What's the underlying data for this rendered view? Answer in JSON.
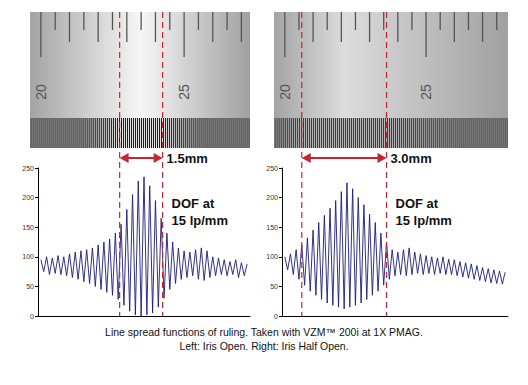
{
  "chart_data": [
    {
      "type": "line",
      "color": "#1c1c78",
      "grid": false,
      "tick_labels": "y",
      "xlim": [
        19.9,
        27.3
      ],
      "ylim": [
        0,
        250
      ],
      "yticks": [
        0,
        50,
        100,
        150,
        200,
        250
      ],
      "x": [
        20,
        20.1,
        20.2,
        20.3,
        20.4,
        20.5,
        20.6,
        20.7,
        20.8,
        20.9,
        21,
        21.1,
        21.2,
        21.3,
        21.4,
        21.5,
        21.6,
        21.7,
        21.8,
        21.9,
        22,
        22.1,
        22.2,
        22.3,
        22.4,
        22.5,
        22.6,
        22.7,
        22.8,
        22.9,
        23,
        23.1,
        23.2,
        23.3,
        23.4,
        23.5,
        23.6,
        23.7,
        23.8,
        23.9,
        24,
        24.1,
        24.2,
        24.3,
        24.4,
        24.5,
        24.6,
        24.7,
        24.8,
        24.9,
        25,
        25.1,
        25.2,
        25.3,
        25.4,
        25.5,
        25.6,
        25.7,
        25.8,
        25.9,
        26,
        26.1,
        26.2,
        26.3,
        26.4,
        26.5,
        26.6,
        26.7,
        26.8,
        26.9,
        27,
        27.1,
        27.2
      ],
      "values": [
        95,
        75,
        100,
        70,
        98,
        72,
        102,
        70,
        100,
        68,
        105,
        65,
        108,
        62,
        110,
        58,
        112,
        55,
        115,
        50,
        120,
        45,
        125,
        40,
        130,
        35,
        140,
        28,
        155,
        18,
        180,
        8,
        205,
        2,
        228,
        0,
        235,
        2,
        220,
        5,
        195,
        15,
        165,
        30,
        140,
        45,
        125,
        55,
        115,
        62,
        110,
        65,
        108,
        68,
        112,
        62,
        115,
        60,
        110,
        65,
        100,
        68,
        98,
        70,
        95,
        68,
        92,
        70,
        95,
        65,
        90,
        68,
        88
      ],
      "dof_bounds": [
        22.75,
        24.25
      ],
      "dof_width": "1.5mm",
      "annotation": [
        "DOF at",
        "15 lp/mm"
      ],
      "ruler": {
        "ticks": [
          20,
          20.5,
          21,
          21.5,
          22,
          22.5,
          23,
          23.5,
          24,
          24.5,
          25,
          25.5,
          26,
          26.5,
          27
        ],
        "labels": [
          20,
          25
        ]
      }
    },
    {
      "type": "line",
      "color": "#1c1c78",
      "grid": false,
      "tick_labels": "y",
      "xlim": [
        19.9,
        27.9
      ],
      "ylim": [
        0,
        250
      ],
      "yticks": [
        0,
        50,
        100,
        150,
        200,
        250
      ],
      "x": [
        20,
        20.1,
        20.2,
        20.3,
        20.4,
        20.5,
        20.6,
        20.7,
        20.8,
        20.9,
        21,
        21.1,
        21.2,
        21.3,
        21.4,
        21.5,
        21.6,
        21.7,
        21.8,
        21.9,
        22,
        22.1,
        22.2,
        22.3,
        22.4,
        22.5,
        22.6,
        22.7,
        22.8,
        22.9,
        23,
        23.1,
        23.2,
        23.3,
        23.4,
        23.5,
        23.6,
        23.7,
        23.8,
        23.9,
        24,
        24.1,
        24.2,
        24.3,
        24.4,
        24.5,
        24.6,
        24.7,
        24.8,
        24.9,
        25,
        25.1,
        25.2,
        25.3,
        25.4,
        25.5,
        25.6,
        25.7,
        25.8,
        25.9,
        26,
        26.1,
        26.2,
        26.3,
        26.4,
        26.5,
        26.6,
        26.7,
        26.8,
        26.9,
        27,
        27.1,
        27.2,
        27.3,
        27.4,
        27.5,
        27.6,
        27.7,
        27.8
      ],
      "values": [
        100,
        78,
        105,
        70,
        112,
        62,
        120,
        52,
        132,
        42,
        145,
        35,
        158,
        28,
        170,
        22,
        182,
        18,
        195,
        15,
        210,
        12,
        225,
        15,
        215,
        18,
        200,
        22,
        188,
        28,
        172,
        35,
        158,
        42,
        140,
        52,
        125,
        62,
        112,
        68,
        108,
        70,
        112,
        68,
        115,
        70,
        108,
        72,
        105,
        70,
        102,
        72,
        100,
        70,
        98,
        72,
        100,
        70,
        96,
        70,
        95,
        68,
        92,
        66,
        90,
        64,
        88,
        62,
        85,
        60,
        82,
        58,
        80,
        56,
        78,
        55,
        76,
        54,
        74
      ],
      "dof_bounds": [
        20.6,
        23.6
      ],
      "dof_width": "3.0mm",
      "annotation": [
        "DOF at",
        "15 lp/mm"
      ],
      "ruler": {
        "ticks": [
          20,
          20.5,
          21,
          21.5,
          22,
          22.5,
          23,
          23.5,
          24,
          24.5,
          25,
          25.5,
          26,
          26.5,
          27,
          27.5
        ],
        "labels": [
          20,
          25
        ]
      }
    }
  ],
  "caption": [
    "Line spread functions of ruling. Taken with VZM™ 200i at 1X PMAG.",
    "Left: Iris Open. Right: Iris Half Open."
  ]
}
